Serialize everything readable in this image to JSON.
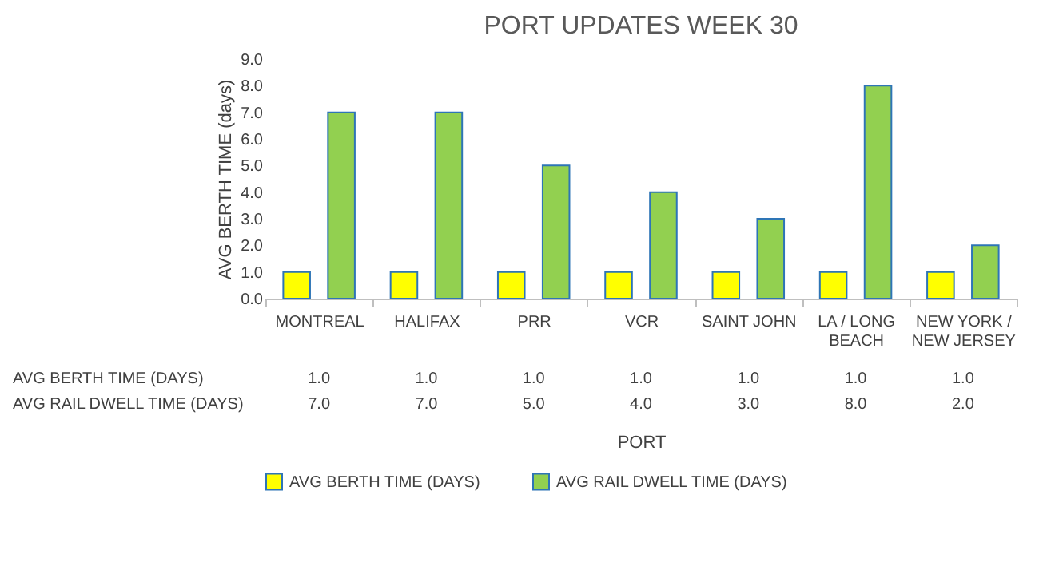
{
  "chart_data": {
    "type": "bar",
    "title": "PORT UPDATES WEEK 30",
    "xlabel": "PORT",
    "ylabel": "AVG BERTH TIME (days)",
    "categories": [
      "MONTREAL",
      "HALIFAX",
      "PRR",
      "VCR",
      "SAINT JOHN",
      "LA / LONG BEACH",
      "NEW YORK / NEW JERSEY"
    ],
    "series": [
      {
        "name": "AVG BERTH TIME (DAYS)",
        "color": "#ffff00",
        "values": [
          1,
          1,
          1,
          1,
          1,
          1,
          1
        ],
        "value_labels": [
          "1.0",
          "1.0",
          "1.0",
          "1.0",
          "1.0",
          "1.0",
          "1.0"
        ]
      },
      {
        "name": "AVG RAIL DWELL TIME (DAYS)",
        "color": "#92d050",
        "values": [
          7,
          7,
          5,
          4,
          3,
          8,
          2
        ],
        "value_labels": [
          "7.0",
          "7.0",
          "5.0",
          "4.0",
          "3.0",
          "8.0",
          "2.0"
        ]
      }
    ],
    "ylim": [
      0,
      9
    ],
    "yticks": [
      {
        "value": 0,
        "label": "0.0"
      },
      {
        "value": 1,
        "label": "1.0"
      },
      {
        "value": 2,
        "label": "2.0"
      },
      {
        "value": 3,
        "label": "3.0"
      },
      {
        "value": 4,
        "label": "4.0"
      },
      {
        "value": 5,
        "label": "5.0"
      },
      {
        "value": 6,
        "label": "6.0"
      },
      {
        "value": 7,
        "label": "7.0"
      },
      {
        "value": 8,
        "label": "8.0"
      },
      {
        "value": 9,
        "label": "9.0"
      }
    ],
    "legend": "bottom",
    "grid": false
  }
}
